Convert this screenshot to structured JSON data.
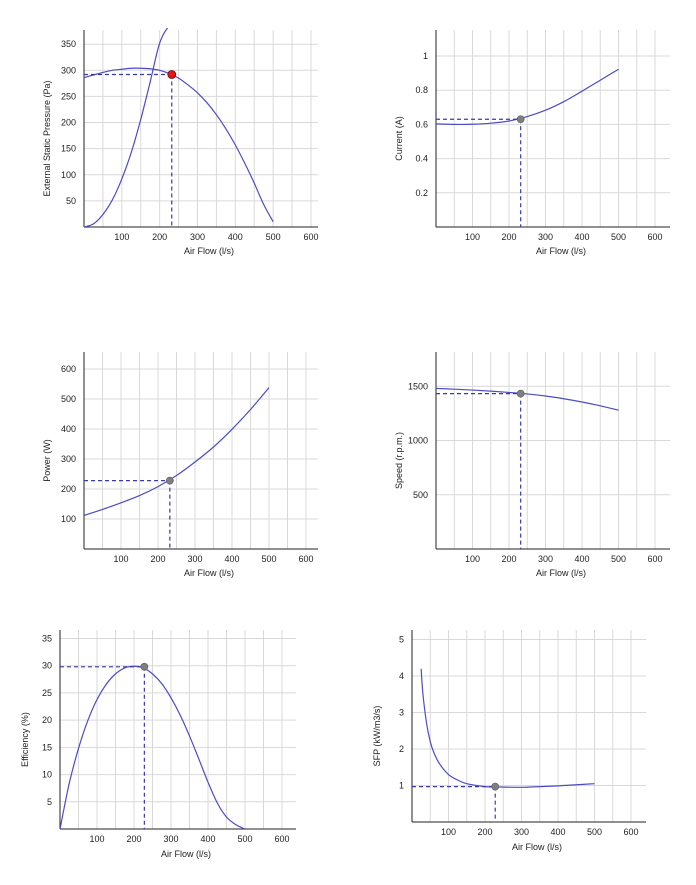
{
  "colors": {
    "curve": "#4c4cc4",
    "system_curve": "#4c4cc4",
    "guide": "#3a3aa8",
    "marker_primary": "#e01818",
    "marker": "#7f7f7f",
    "grid": "#d9d9d9",
    "axis": "#222222"
  },
  "chart_data": [
    {
      "id": "pressure",
      "type": "line",
      "title": "",
      "xlabel": "Air Flow (l/s)",
      "ylabel": "External Static Pressure (Pa)",
      "xlim": [
        0,
        600
      ],
      "ylim": [
        0,
        380
      ],
      "xticks": [
        100,
        200,
        300,
        400,
        500,
        600
      ],
      "yticks": [
        50,
        100,
        150,
        200,
        250,
        300,
        350
      ],
      "grid": true,
      "series": [
        {
          "role": "fan-curve",
          "x": [
            0,
            25,
            50,
            75,
            100,
            125,
            150,
            175,
            200,
            225,
            250,
            275,
            300,
            325,
            350,
            375,
            400,
            425,
            450,
            475,
            500
          ],
          "y": [
            286,
            291,
            296,
            300,
            302,
            304,
            304,
            303,
            300,
            294,
            285,
            272,
            257,
            238,
            215,
            188,
            157,
            122,
            84,
            43,
            10
          ]
        },
        {
          "role": "system-curve",
          "x": [
            0,
            25,
            50,
            75,
            100,
            125,
            150,
            175,
            200,
            225,
            250
          ],
          "y": [
            0,
            6,
            24,
            52,
            92,
            143,
            206,
            278,
            352,
            385,
            398
          ]
        }
      ],
      "operating_point": {
        "x": 232,
        "y": 292
      }
    },
    {
      "id": "current",
      "type": "line",
      "title": "",
      "xlabel": "Air Flow (l/s)",
      "ylabel": "Current (A)",
      "xlim": [
        0,
        600
      ],
      "ylim": [
        0,
        1.15
      ],
      "xticks": [
        100,
        200,
        300,
        400,
        500,
        600
      ],
      "yticks": [
        0.2,
        0.4,
        0.6,
        0.8,
        1
      ],
      "grid": true,
      "series": [
        {
          "x": [
            0,
            50,
            100,
            150,
            200,
            250,
            300,
            350,
            400,
            450,
            500
          ],
          "y": [
            0.603,
            0.6,
            0.601,
            0.607,
            0.62,
            0.646,
            0.683,
            0.733,
            0.7943,
            0.8584,
            0.9224
          ]
        }
      ],
      "operating_point": {
        "x": 232,
        "y": 0.63
      }
    },
    {
      "id": "power",
      "type": "line",
      "title": "",
      "xlabel": "Air Flow (l/s)",
      "ylabel": "Power (W)",
      "xlim": [
        0,
        600
      ],
      "ylim": [
        0,
        660
      ],
      "xticks": [
        100,
        200,
        300,
        400,
        500,
        600
      ],
      "yticks": [
        100,
        200,
        300,
        400,
        500,
        600
      ],
      "grid": true,
      "series": [
        {
          "x": [
            0,
            50,
            100,
            150,
            200,
            250,
            300,
            350,
            400,
            450,
            500
          ],
          "y": [
            112,
            132,
            154,
            178,
            208,
            245,
            290,
            340,
            399,
            465,
            538
          ]
        }
      ],
      "operating_point": {
        "x": 232,
        "y": 228
      }
    },
    {
      "id": "speed",
      "type": "line",
      "title": "",
      "xlabel": "Air Flow (l/s)",
      "ylabel": "Speed (r.p.m.)",
      "xlim": [
        0,
        600
      ],
      "ylim": [
        0,
        1800
      ],
      "xticks": [
        100,
        200,
        300,
        400,
        500,
        600
      ],
      "yticks": [
        500,
        1000,
        1500
      ],
      "grid": true,
      "series": [
        {
          "x": [
            0,
            50,
            100,
            150,
            200,
            250,
            300,
            350,
            400,
            450,
            500
          ],
          "y": [
            1480,
            1473,
            1465,
            1455,
            1443,
            1429,
            1410,
            1385,
            1355,
            1320,
            1280
          ]
        }
      ],
      "operating_point": {
        "x": 232,
        "y": 1432
      }
    },
    {
      "id": "efficiency",
      "type": "line",
      "title": "",
      "xlabel": "Air Flow (l/s)",
      "ylabel": "Efficiency (%)",
      "xlim": [
        0,
        600
      ],
      "ylim": [
        0,
        36
      ],
      "xticks": [
        100,
        200,
        300,
        400,
        500,
        600
      ],
      "yticks": [
        5,
        10,
        15,
        20,
        25,
        30,
        35
      ],
      "grid": true,
      "series": [
        {
          "x": [
            0,
            25,
            50,
            75,
            100,
            125,
            150,
            175,
            200,
            225,
            250,
            275,
            300,
            325,
            350,
            375,
            400,
            425,
            450,
            475,
            500
          ],
          "y": [
            0,
            8.4,
            14.8,
            19.9,
            23.8,
            26.6,
            28.5,
            29.6,
            29.9,
            29.6,
            28.5,
            26.7,
            24.1,
            20.9,
            17.1,
            12.9,
            8.6,
            4.8,
            2.2,
            0.8,
            0
          ]
        }
      ],
      "operating_point": {
        "x": 228,
        "y": 29.8
      }
    },
    {
      "id": "sfp",
      "type": "line",
      "title": "",
      "xlabel": "Air Flow (l/s)",
      "ylabel": "SFP (kW/m3/s)",
      "xlim": [
        0,
        600
      ],
      "ylim": [
        0,
        5.2
      ],
      "xticks": [
        100,
        200,
        300,
        400,
        500,
        600
      ],
      "yticks": [
        1,
        2,
        3,
        4,
        5
      ],
      "grid": true,
      "series": [
        {
          "x": [
            25,
            30,
            40,
            50,
            60,
            75,
            100,
            125,
            150,
            200,
            230,
            300,
            350,
            400,
            450,
            500
          ],
          "y": [
            4.2,
            3.5,
            2.7,
            2.2,
            1.9,
            1.6,
            1.3,
            1.15,
            1.05,
            0.97,
            0.96,
            0.95,
            0.97,
            0.99,
            1.02,
            1.05
          ]
        }
      ],
      "operating_point": {
        "x": 228,
        "y": 0.97
      }
    }
  ]
}
